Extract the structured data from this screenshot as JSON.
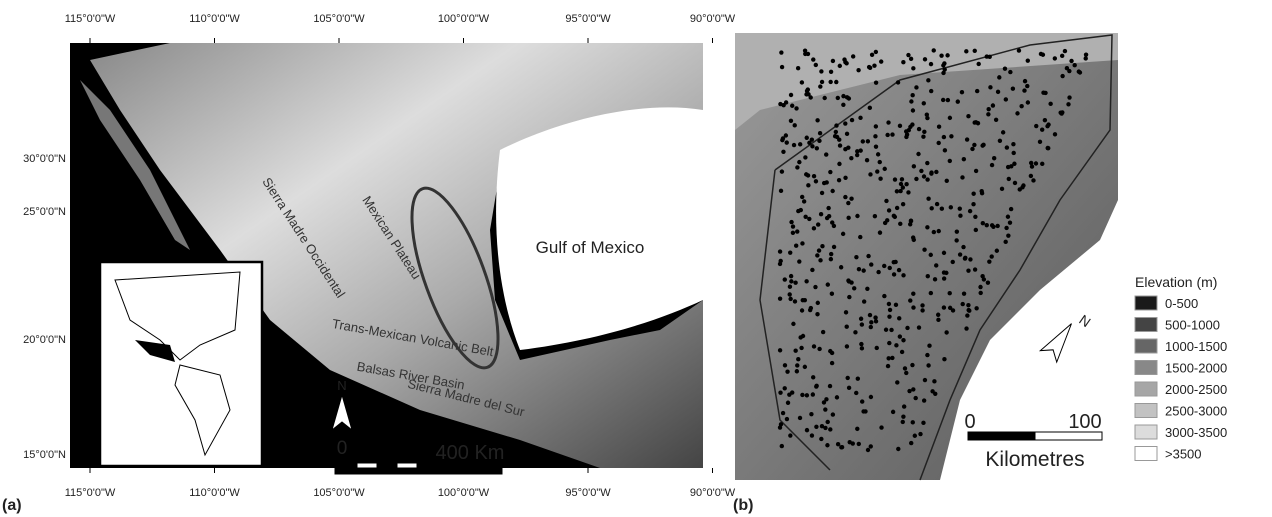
{
  "panel_a": {
    "label": "(a)",
    "lon_labels": [
      "115°0'0\"W",
      "110°0'0\"W",
      "105°0'0\"W",
      "100°0'0\"W",
      "95°0'0\"W",
      "90°0'0\"W"
    ],
    "lat_labels": [
      "30°0'0\"N",
      "25°0'0\"N",
      "20°0'0\"N",
      "15°0'0\"N"
    ],
    "features": [
      "Sierra Madre Occidental",
      "Mexican Plateau",
      "Trans-Mexican Volcanic Belt",
      "Balsas River Basin",
      "Sierra Madre del Sur",
      "Gulf of Mexico"
    ],
    "north": "N",
    "scale_start": "0",
    "scale_end": "400 Km"
  },
  "panel_b": {
    "label": "(b)",
    "legend": {
      "title": "Elevation (m)",
      "items": [
        {
          "label": "0-500",
          "color": "#1a1a1a"
        },
        {
          "label": "500-1000",
          "color": "#444"
        },
        {
          "label": "1000-1500",
          "color": "#666"
        },
        {
          "label": "1500-2000",
          "color": "#888"
        },
        {
          "label": "2000-2500",
          "color": "#a6a6a6"
        },
        {
          "label": "2500-3000",
          "color": "#c2c2c2"
        },
        {
          "label": "3000-3500",
          "color": "#dcdcdc"
        },
        {
          "label": ">3500",
          "color": "#ffffff"
        }
      ]
    },
    "north": "N",
    "scale_start": "0",
    "scale_end": "100",
    "scale_unit": "Kilometres"
  }
}
